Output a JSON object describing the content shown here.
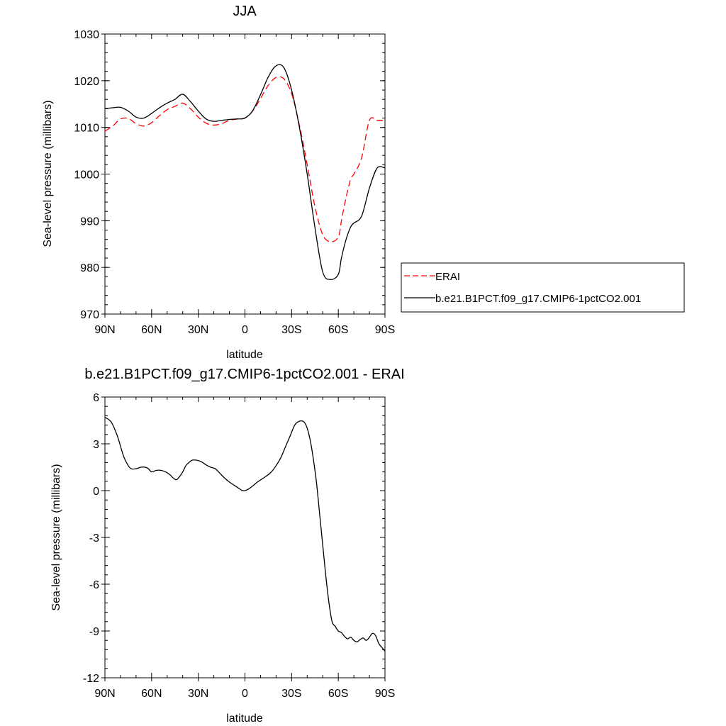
{
  "chart_data": [
    {
      "type": "line",
      "title": "JJA",
      "xlabel": "latitude",
      "ylabel": "Sea-level pressure (millibars)",
      "xlim": [
        90,
        -90
      ],
      "ylim": [
        970,
        1030
      ],
      "x_ticks": [
        90,
        60,
        30,
        0,
        -30,
        -60,
        -90
      ],
      "x_tick_labels": [
        "90N",
        "60N",
        "30N",
        "0",
        "30S",
        "60S",
        "90S"
      ],
      "y_ticks": [
        970,
        980,
        990,
        1000,
        1010,
        1020,
        1030
      ],
      "y_tick_labels": [
        "970",
        "980",
        "990",
        "1000",
        "1010",
        "1020",
        "1030"
      ],
      "legend": "right",
      "series": [
        {
          "name": "ERAI",
          "color": "#ff0000",
          "dash": "dashed",
          "x": [
            90,
            85,
            80,
            75,
            70,
            65,
            60,
            55,
            50,
            45,
            40,
            35,
            30,
            25,
            20,
            15,
            10,
            5,
            0,
            -5,
            -10,
            -15,
            -20,
            -25,
            -30,
            -35,
            -40,
            -45,
            -50,
            -55,
            -60,
            -62,
            -65,
            -68,
            -70,
            -75,
            -80,
            -85,
            -90
          ],
          "y": [
            1009.2,
            1010.3,
            1011.8,
            1011.9,
            1010.8,
            1010.3,
            1011.0,
            1012.5,
            1013.8,
            1014.5,
            1015.2,
            1014.0,
            1012.2,
            1010.9,
            1010.5,
            1010.8,
            1011.5,
            1011.8,
            1012.0,
            1013.5,
            1016.2,
            1019.0,
            1020.7,
            1020.4,
            1017.2,
            1010.5,
            1002.0,
            993.0,
            987.0,
            985.5,
            986.5,
            990.0,
            995.0,
            999.0,
            1000.0,
            1003.5,
            1011.5,
            1011.5,
            1011.5
          ]
        },
        {
          "name": "b.e21.B1PCT.f09_g17.CMIP6-1pctCO2.001",
          "color": "#000000",
          "dash": "solid",
          "x": [
            90,
            85,
            80,
            75,
            70,
            65,
            60,
            55,
            50,
            45,
            40,
            35,
            30,
            25,
            20,
            15,
            10,
            5,
            0,
            -5,
            -10,
            -15,
            -20,
            -25,
            -30,
            -35,
            -40,
            -45,
            -50,
            -55,
            -60,
            -62,
            -65,
            -68,
            -70,
            -75,
            -80,
            -85,
            -90
          ],
          "y": [
            1014.0,
            1014.2,
            1014.3,
            1013.5,
            1012.2,
            1012.0,
            1013.0,
            1014.2,
            1015.2,
            1016.0,
            1017.1,
            1015.5,
            1013.5,
            1011.8,
            1011.3,
            1011.5,
            1011.7,
            1011.8,
            1012.0,
            1013.6,
            1017.0,
            1020.8,
            1023.2,
            1022.8,
            1018.0,
            1010.0,
            1000.0,
            988.5,
            979.0,
            977.4,
            978.5,
            982.0,
            986.0,
            988.7,
            989.5,
            991.0,
            997.0,
            1001.3,
            1001.3
          ]
        }
      ]
    },
    {
      "type": "line",
      "title": "b.e21.B1PCT.f09_g17.CMIP6-1pctCO2.001 - ERAI",
      "xlabel": "latitude",
      "ylabel": "Sea-level pressure (millibars)",
      "xlim": [
        90,
        -90
      ],
      "ylim": [
        -12,
        6
      ],
      "x_ticks": [
        90,
        60,
        30,
        0,
        -30,
        -60,
        -90
      ],
      "x_tick_labels": [
        "90N",
        "60N",
        "30N",
        "0",
        "30S",
        "60S",
        "90S"
      ],
      "y_ticks": [
        -12,
        -9,
        -6,
        -3,
        0,
        3,
        6
      ],
      "y_tick_labels": [
        "-12",
        "-9",
        "-6",
        "-3",
        "0",
        "3",
        "6"
      ],
      "series": [
        {
          "color": "#000000",
          "dash": "solid",
          "x": [
            90,
            86,
            82,
            78,
            75,
            73,
            70,
            67,
            64,
            62,
            60,
            57,
            54,
            51,
            48,
            46,
            44,
            42,
            40,
            38,
            36,
            34,
            31,
            28,
            25,
            22,
            19,
            16,
            13,
            10,
            7,
            4,
            2,
            0,
            -2,
            -5,
            -8,
            -11,
            -14,
            -17,
            -20,
            -23,
            -26,
            -29,
            -32,
            -35,
            -38,
            -40,
            -42,
            -44,
            -46,
            -48,
            -50,
            -52,
            -54,
            -56,
            -58,
            -60,
            -62,
            -64,
            -66,
            -68,
            -70,
            -72,
            -74,
            -76,
            -78,
            -80,
            -82,
            -84,
            -86,
            -88,
            -90
          ],
          "y": [
            4.7,
            4.4,
            3.5,
            2.2,
            1.6,
            1.4,
            1.4,
            1.5,
            1.5,
            1.4,
            1.2,
            1.3,
            1.3,
            1.2,
            1.0,
            0.8,
            0.7,
            0.9,
            1.2,
            1.6,
            1.8,
            1.95,
            1.95,
            1.85,
            1.65,
            1.5,
            1.4,
            1.1,
            0.8,
            0.55,
            0.35,
            0.15,
            0.02,
            0.0,
            0.08,
            0.3,
            0.55,
            0.75,
            0.95,
            1.2,
            1.6,
            2.1,
            2.8,
            3.5,
            4.2,
            4.45,
            4.4,
            4.0,
            3.2,
            2.0,
            0.5,
            -1.5,
            -3.5,
            -5.5,
            -7.2,
            -8.4,
            -8.7,
            -9.0,
            -9.1,
            -9.35,
            -9.5,
            -9.4,
            -9.6,
            -9.7,
            -9.55,
            -9.45,
            -9.6,
            -9.4,
            -9.15,
            -9.3,
            -9.8,
            -10.05,
            -10.3
          ]
        }
      ]
    }
  ]
}
